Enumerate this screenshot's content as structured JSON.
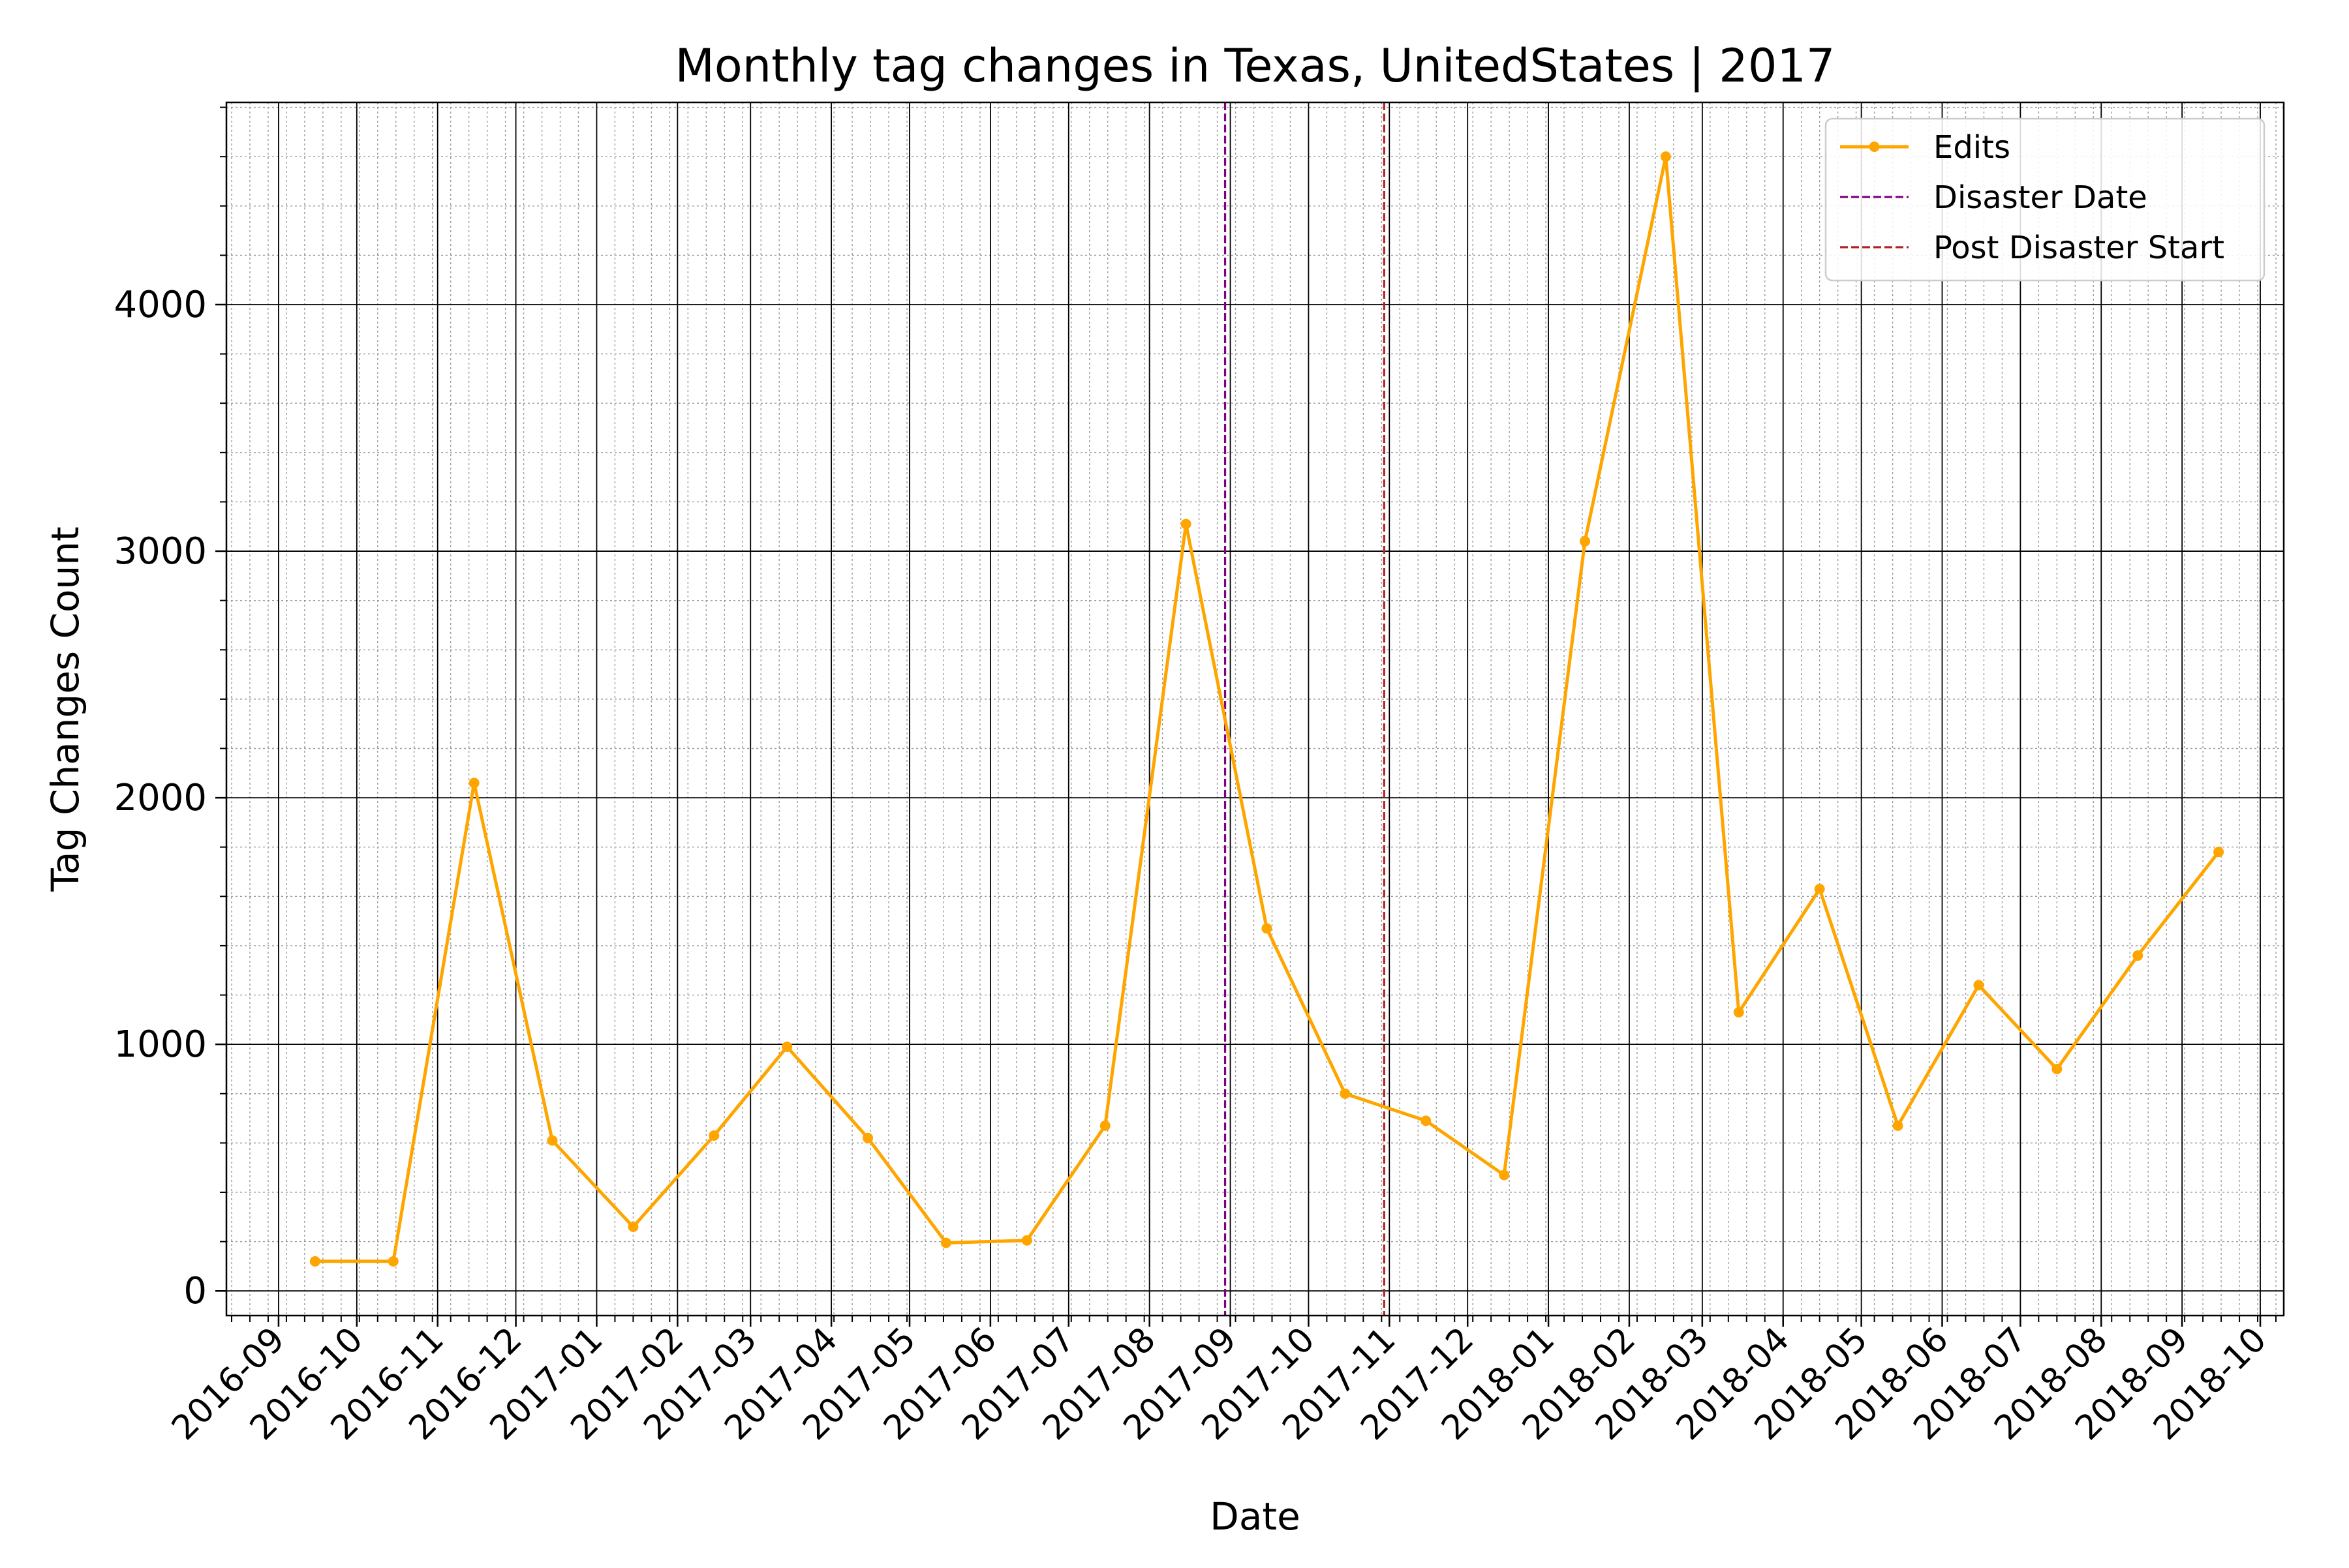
{
  "chart_data": {
    "type": "line",
    "title": "Monthly tag changes in Texas, UnitedStates | 2017",
    "xlabel": "Date",
    "ylabel": "Tag Changes Count",
    "x_ticks": [
      "2016-09",
      "2016-10",
      "2016-11",
      "2016-12",
      "2017-01",
      "2017-02",
      "2017-03",
      "2017-04",
      "2017-05",
      "2017-06",
      "2017-07",
      "2017-08",
      "2017-09",
      "2017-10",
      "2017-11",
      "2017-12",
      "2018-01",
      "2018-02",
      "2018-03",
      "2018-04",
      "2018-05",
      "2018-06",
      "2018-07",
      "2018-08",
      "2018-09",
      "2018-10"
    ],
    "y_ticks": [
      0,
      1000,
      2000,
      3000,
      4000
    ],
    "xlim": [
      "2016-08-12",
      "2018-10-10"
    ],
    "ylim": [
      -100,
      4820
    ],
    "grid": true,
    "legend_position": "top-right",
    "series": [
      {
        "name": "Edits",
        "color": "#FFA500",
        "marker": "circle",
        "points": [
          {
            "x": "2016-09-15",
            "y": 120
          },
          {
            "x": "2016-10-15",
            "y": 120
          },
          {
            "x": "2016-11-15",
            "y": 2060
          },
          {
            "x": "2016-12-15",
            "y": 610
          },
          {
            "x": "2017-01-15",
            "y": 260
          },
          {
            "x": "2017-02-15",
            "y": 630
          },
          {
            "x": "2017-03-15",
            "y": 990
          },
          {
            "x": "2017-04-15",
            "y": 620
          },
          {
            "x": "2017-05-15",
            "y": 195
          },
          {
            "x": "2017-06-15",
            "y": 205
          },
          {
            "x": "2017-07-15",
            "y": 670
          },
          {
            "x": "2017-08-15",
            "y": 3110
          },
          {
            "x": "2017-09-15",
            "y": 1470
          },
          {
            "x": "2017-10-15",
            "y": 800
          },
          {
            "x": "2017-11-15",
            "y": 690
          },
          {
            "x": "2017-12-15",
            "y": 470
          },
          {
            "x": "2018-01-15",
            "y": 3040
          },
          {
            "x": "2018-02-15",
            "y": 4600
          },
          {
            "x": "2018-03-15",
            "y": 1130
          },
          {
            "x": "2018-04-15",
            "y": 1630
          },
          {
            "x": "2018-05-15",
            "y": 670
          },
          {
            "x": "2018-06-15",
            "y": 1240
          },
          {
            "x": "2018-07-15",
            "y": 900
          },
          {
            "x": "2018-08-15",
            "y": 1360
          },
          {
            "x": "2018-09-15",
            "y": 1780
          }
        ]
      }
    ],
    "vlines": [
      {
        "name": "Disaster Date",
        "x": "2017-08-30",
        "color": "#800080",
        "style": "dashed"
      },
      {
        "name": "Post Disaster Start",
        "x": "2017-10-30",
        "color": "#B22222",
        "style": "dashed"
      }
    ]
  }
}
